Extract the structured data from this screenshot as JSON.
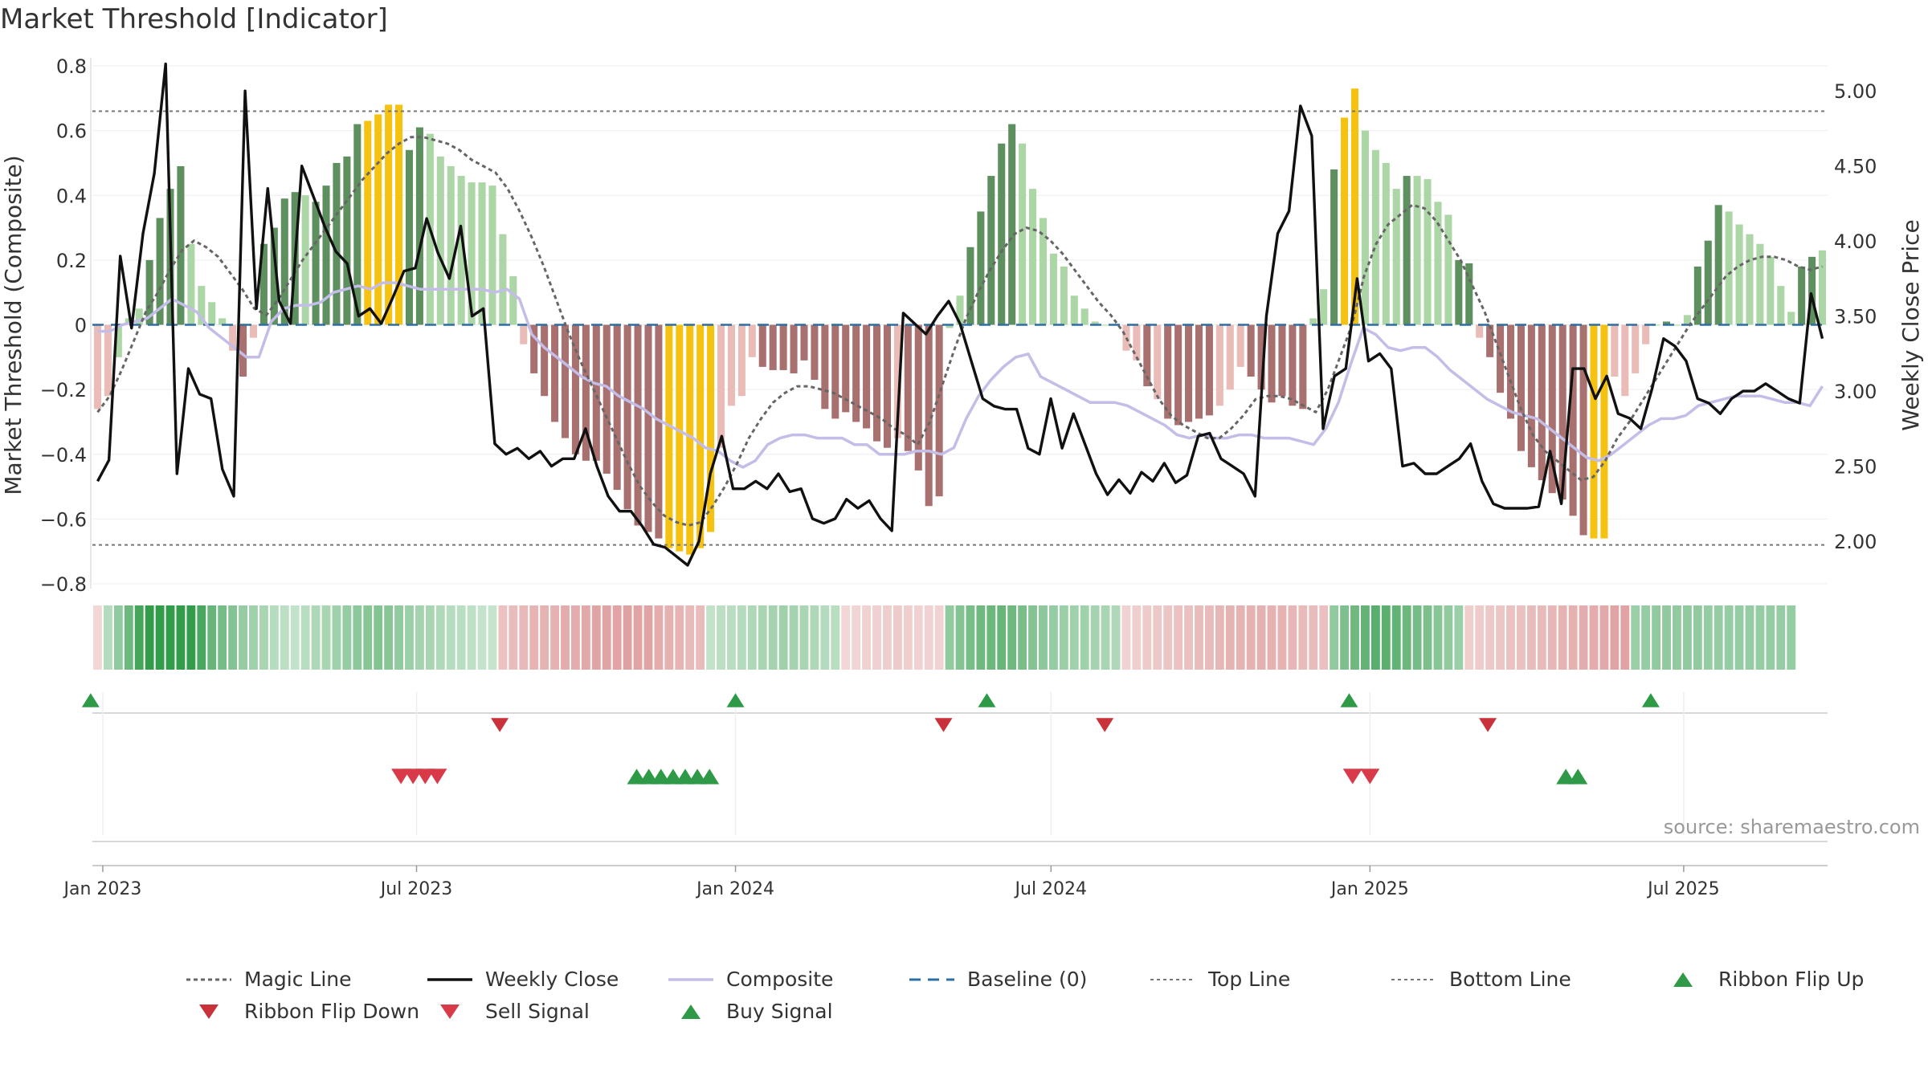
{
  "title": "Market Threshold [Indicator]",
  "source_label": "source: sharemaestro.com",
  "colors": {
    "pos_dark": "#5e8f5e",
    "pos_light": "#acd6a5",
    "neg_dark": "#a8716f",
    "neg_light": "#e9bcb8",
    "extreme": "#f5c211",
    "close": "#111111",
    "composite": "#c3bde8",
    "magic": "#666666",
    "baseline": "#2e6ea3",
    "threshold": "#777777",
    "buy": "#2e9a47",
    "sell": "#d93a49",
    "flip_up": "#2e9a47",
    "flip_down": "#c9323a"
  },
  "chart_data": {
    "type": "bar+line",
    "x_start": "2022-12-26",
    "bar_interval_days": 7,
    "y_left": {
      "label": "Market Threshold (Composite)",
      "lim": [
        -0.8,
        0.8
      ],
      "ticks": [
        0.8,
        0.6,
        0.4,
        0.2,
        0,
        -0.2,
        -0.4,
        -0.6,
        -0.8
      ],
      "tick_labels": [
        "0.8",
        "0.6",
        "0.4",
        "0.2",
        "0",
        "−0.2",
        "−0.4",
        "−0.6",
        "−0.8"
      ]
    },
    "y_right": {
      "label": "Weekly Close Price",
      "lim": [
        1.717,
        5.167
      ],
      "ticks": [
        5.0,
        4.5,
        4.0,
        3.5,
        3.0,
        2.5,
        2.0
      ],
      "tick_labels": [
        "5.00",
        "4.50",
        "4.00",
        "3.50",
        "3.00",
        "2.50",
        "2.00"
      ]
    },
    "x_ticks": [
      {
        "date": "2023-01-01",
        "label": "Jan 2023"
      },
      {
        "date": "2023-07-01",
        "label": "Jul 2023"
      },
      {
        "date": "2024-01-01",
        "label": "Jan 2024"
      },
      {
        "date": "2024-07-01",
        "label": "Jul 2024"
      },
      {
        "date": "2025-01-01",
        "label": "Jan 2025"
      },
      {
        "date": "2025-07-01",
        "label": "Jul 2025"
      }
    ],
    "top_line": 0.66,
    "bottom_line": -0.68,
    "baseline": 0,
    "composite_bars": [
      -0.26,
      -0.22,
      -0.1,
      0.02,
      0.05,
      0.2,
      0.33,
      0.42,
      0.49,
      0.25,
      0.12,
      0.07,
      0.02,
      -0.08,
      -0.16,
      -0.04,
      0.25,
      0.3,
      0.39,
      0.41,
      0.4,
      0.38,
      0.43,
      0.5,
      0.52,
      0.62,
      0.63,
      0.65,
      0.68,
      0.68,
      0.54,
      0.61,
      0.59,
      0.52,
      0.49,
      0.46,
      0.44,
      0.44,
      0.43,
      0.28,
      0.15,
      -0.06,
      -0.15,
      -0.22,
      -0.3,
      -0.35,
      -0.4,
      -0.42,
      -0.42,
      -0.46,
      -0.51,
      -0.57,
      -0.62,
      -0.64,
      -0.66,
      -0.69,
      -0.7,
      -0.71,
      -0.69,
      -0.64,
      -0.38,
      -0.25,
      -0.22,
      -0.1,
      -0.13,
      -0.14,
      -0.14,
      -0.15,
      -0.11,
      -0.17,
      -0.26,
      -0.29,
      -0.27,
      -0.3,
      -0.32,
      -0.36,
      -0.38,
      -0.35,
      -0.39,
      -0.45,
      -0.56,
      -0.53,
      -0.01,
      0.09,
      0.24,
      0.35,
      0.46,
      0.56,
      0.62,
      0.56,
      0.42,
      0.33,
      0.22,
      0.18,
      0.09,
      0.05,
      0.01,
      0,
      0,
      -0.08,
      -0.11,
      -0.19,
      -0.23,
      -0.29,
      -0.31,
      -0.3,
      -0.29,
      -0.28,
      -0.25,
      -0.2,
      -0.13,
      -0.16,
      -0.2,
      -0.24,
      -0.22,
      -0.25,
      -0.26,
      0.02,
      0.11,
      0.48,
      0.64,
      0.73,
      0.6,
      0.54,
      0.5,
      0.42,
      0.46,
      0.46,
      0.45,
      0.38,
      0.34,
      0.2,
      0.19,
      -0.04,
      -0.1,
      -0.21,
      -0.29,
      -0.39,
      -0.44,
      -0.48,
      -0.52,
      -0.54,
      -0.59,
      -0.65,
      -0.66,
      -0.66,
      -0.16,
      -0.22,
      -0.15,
      -0.06,
      0,
      0.01,
      0,
      0.03,
      0.18,
      0.26,
      0.37,
      0.35,
      0.31,
      0.28,
      0.25,
      0.21,
      0.12,
      0.04,
      0.18,
      0.21,
      0.23
    ],
    "bar_styles": [
      "nl",
      "nl",
      "pl",
      "pl",
      "pl",
      "pd",
      "pd",
      "pd",
      "pd",
      "pl",
      "pl",
      "pl",
      "pl",
      "nl",
      "nd",
      "nl",
      "pd",
      "pd",
      "pd",
      "pd",
      "pl",
      "pd",
      "pd",
      "pd",
      "pd",
      "pd",
      "ex",
      "ex",
      "ex",
      "ex",
      "pd",
      "pd",
      "pl",
      "pl",
      "pl",
      "pl",
      "pl",
      "pl",
      "pl",
      "pl",
      "pl",
      "nl",
      "nd",
      "nd",
      "nd",
      "nd",
      "nd",
      "nd",
      "nd",
      "nd",
      "nd",
      "nd",
      "nd",
      "nd",
      "nd",
      "ex",
      "ex",
      "ex",
      "ex",
      "ex",
      "nl",
      "nl",
      "nl",
      "nl",
      "nd",
      "nd",
      "nd",
      "nd",
      "nd",
      "nd",
      "nd",
      "nd",
      "nd",
      "nd",
      "nd",
      "nd",
      "nd",
      "nl",
      "nd",
      "nd",
      "nd",
      "nd",
      "pl",
      "pl",
      "pd",
      "pd",
      "pd",
      "pd",
      "pd",
      "pl",
      "pl",
      "pl",
      "pl",
      "pl",
      "pl",
      "pl",
      "pl",
      "pl",
      "pl",
      "nl",
      "nl",
      "nd",
      "nl",
      "nd",
      "nd",
      "nd",
      "nd",
      "nd",
      "nl",
      "nl",
      "nl",
      "nd",
      "nd",
      "nd",
      "nd",
      "nd",
      "nd",
      "pl",
      "pl",
      "pd",
      "ex",
      "ex",
      "pl",
      "pl",
      "pl",
      "pl",
      "pd",
      "pl",
      "pl",
      "pl",
      "pl",
      "pd",
      "pd",
      "nl",
      "nd",
      "nd",
      "nd",
      "nd",
      "nd",
      "nd",
      "nd",
      "nd",
      "nd",
      "nd",
      "ex",
      "ex",
      "nl",
      "nl",
      "nl",
      "nl",
      "pl",
      "pd",
      "pl",
      "pl",
      "pd",
      "pd",
      "pd",
      "pl",
      "pl",
      "pl",
      "pl",
      "pl",
      "pl",
      "pl",
      "pd",
      "pd"
    ],
    "weekly_close": [
      2.4,
      2.54,
      3.9,
      3.42,
      4.05,
      4.45,
      5.18,
      2.45,
      3.15,
      2.98,
      2.95,
      2.48,
      2.3,
      5.0,
      3.55,
      4.35,
      3.6,
      3.45,
      4.5,
      4.3,
      4.1,
      3.93,
      3.85,
      3.5,
      3.55,
      3.45,
      3.62,
      3.8,
      3.82,
      4.15,
      3.92,
      3.75,
      4.1,
      3.5,
      3.55,
      2.65,
      2.58,
      2.62,
      2.55,
      2.6,
      2.5,
      2.55,
      2.55,
      2.75,
      2.5,
      2.3,
      2.2,
      2.2,
      2.1,
      1.98,
      1.96,
      1.9,
      1.84,
      2.0,
      2.45,
      2.7,
      2.35,
      2.35,
      2.4,
      2.35,
      2.45,
      2.33,
      2.35,
      2.15,
      2.12,
      2.15,
      2.28,
      2.22,
      2.27,
      2.15,
      2.07,
      3.52,
      3.45,
      3.38,
      3.5,
      3.6,
      3.45,
      3.2,
      2.95,
      2.9,
      2.88,
      2.88,
      2.62,
      2.58,
      2.95,
      2.62,
      2.85,
      2.65,
      2.45,
      2.31,
      2.41,
      2.32,
      2.46,
      2.4,
      2.52,
      2.39,
      2.44,
      2.7,
      2.72,
      2.55,
      2.5,
      2.45,
      2.3,
      3.5,
      4.05,
      4.2,
      4.9,
      4.7,
      2.75,
      3.1,
      3.15,
      3.75,
      3.2,
      3.25,
      3.15,
      2.5,
      2.52,
      2.45,
      2.45,
      2.5,
      2.55,
      2.65,
      2.4,
      2.25,
      2.22,
      2.22,
      2.22,
      2.23,
      2.6,
      2.25,
      3.15,
      3.15,
      2.95,
      3.1,
      2.85,
      2.82,
      2.75,
      3.02,
      3.35,
      3.3,
      3.2,
      2.95,
      2.92,
      2.85,
      2.95,
      3.0,
      3.0,
      3.05,
      3.0,
      2.95,
      2.92,
      3.65,
      3.35
    ],
    "composite_line": [
      -0.02,
      -0.02,
      0.0,
      0.01,
      0.02,
      0.05,
      0.08,
      0.06,
      0.04,
      -0.01,
      -0.04,
      -0.07,
      -0.1,
      -0.1,
      0.01,
      0.05,
      0.06,
      0.06,
      0.07,
      0.1,
      0.11,
      0.12,
      0.11,
      0.13,
      0.13,
      0.12,
      0.11,
      0.11,
      0.11,
      0.11,
      0.11,
      0.11,
      0.1,
      0.11,
      0.08,
      -0.03,
      -0.07,
      -0.1,
      -0.13,
      -0.16,
      -0.18,
      -0.19,
      -0.22,
      -0.24,
      -0.26,
      -0.29,
      -0.31,
      -0.33,
      -0.35,
      -0.38,
      -0.39,
      -0.42,
      -0.44,
      -0.42,
      -0.37,
      -0.35,
      -0.34,
      -0.34,
      -0.35,
      -0.35,
      -0.35,
      -0.37,
      -0.37,
      -0.4,
      -0.4,
      -0.4,
      -0.39,
      -0.39,
      -0.4,
      -0.38,
      -0.29,
      -0.22,
      -0.17,
      -0.13,
      -0.1,
      -0.09,
      -0.16,
      -0.18,
      -0.2,
      -0.22,
      -0.24,
      -0.24,
      -0.24,
      -0.25,
      -0.27,
      -0.29,
      -0.31,
      -0.34,
      -0.35,
      -0.34,
      -0.35,
      -0.35,
      -0.34,
      -0.34,
      -0.35,
      -0.35,
      -0.35,
      -0.36,
      -0.37,
      -0.32,
      -0.24,
      -0.12,
      -0.01,
      -0.03,
      -0.07,
      -0.08,
      -0.07,
      -0.07,
      -0.1,
      -0.14,
      -0.17,
      -0.2,
      -0.23,
      -0.25,
      -0.27,
      -0.28,
      -0.29,
      -0.32,
      -0.35,
      -0.38,
      -0.41,
      -0.42,
      -0.4,
      -0.37,
      -0.34,
      -0.31,
      -0.29,
      -0.29,
      -0.28,
      -0.25,
      -0.24,
      -0.23,
      -0.22,
      -0.22,
      -0.22,
      -0.23,
      -0.24,
      -0.24,
      -0.25,
      -0.19
    ],
    "magic_line": [
      -0.27,
      -0.22,
      -0.14,
      -0.05,
      0.04,
      0.1,
      0.17,
      0.23,
      0.26,
      0.24,
      0.21,
      0.16,
      0.11,
      0.05,
      0.03,
      0.08,
      0.14,
      0.2,
      0.25,
      0.3,
      0.35,
      0.4,
      0.45,
      0.49,
      0.53,
      0.56,
      0.58,
      0.58,
      0.57,
      0.56,
      0.54,
      0.51,
      0.49,
      0.47,
      0.42,
      0.35,
      0.27,
      0.18,
      0.08,
      -0.02,
      -0.11,
      -0.19,
      -0.27,
      -0.35,
      -0.43,
      -0.5,
      -0.55,
      -0.59,
      -0.61,
      -0.62,
      -0.61,
      -0.56,
      -0.5,
      -0.43,
      -0.35,
      -0.29,
      -0.24,
      -0.21,
      -0.19,
      -0.19,
      -0.2,
      -0.21,
      -0.23,
      -0.25,
      -0.27,
      -0.29,
      -0.32,
      -0.34,
      -0.37,
      -0.3,
      -0.19,
      -0.08,
      0.02,
      0.1,
      0.17,
      0.23,
      0.28,
      0.3,
      0.29,
      0.26,
      0.22,
      0.17,
      0.12,
      0.07,
      0.03,
      -0.02,
      -0.09,
      -0.16,
      -0.23,
      -0.28,
      -0.31,
      -0.33,
      -0.35,
      -0.35,
      -0.32,
      -0.28,
      -0.23,
      -0.22,
      -0.22,
      -0.23,
      -0.25,
      -0.27,
      -0.2,
      -0.1,
      0.0,
      0.15,
      0.25,
      0.31,
      0.34,
      0.37,
      0.36,
      0.32,
      0.26,
      0.2,
      0.12,
      0.04,
      -0.06,
      -0.16,
      -0.26,
      -0.34,
      -0.39,
      -0.42,
      -0.45,
      -0.48,
      -0.47,
      -0.42,
      -0.35,
      -0.3,
      -0.24,
      -0.18,
      -0.12,
      -0.06,
      0.0,
      0.05,
      0.1,
      0.15,
      0.18,
      0.2,
      0.21,
      0.21,
      0.2,
      0.18,
      0.17,
      0.18
    ],
    "ribbon": [
      -0.12,
      0.16,
      0.3,
      0.45,
      0.62,
      0.7,
      0.7,
      0.7,
      0.7,
      0.7,
      0.6,
      0.48,
      0.42,
      0.36,
      0.28,
      0.24,
      0.2,
      0.15,
      0.12,
      0.1,
      0.14,
      0.18,
      0.2,
      0.24,
      0.28,
      0.32,
      0.34,
      0.36,
      0.34,
      0.3,
      0.26,
      0.22,
      0.2,
      0.17,
      0.15,
      0.13,
      0.11,
      0.09,
      0.08,
      -0.26,
      -0.3,
      -0.33,
      -0.35,
      -0.37,
      -0.38,
      -0.4,
      -0.42,
      -0.44,
      -0.46,
      -0.47,
      -0.48,
      -0.49,
      -0.48,
      -0.46,
      -0.42,
      -0.38,
      -0.35,
      -0.32,
      -0.3,
      0.1,
      0.12,
      0.14,
      0.16,
      0.18,
      0.2,
      0.22,
      0.24,
      0.22,
      0.2,
      0.18,
      0.16,
      0.14,
      -0.12,
      -0.14,
      -0.16,
      -0.17,
      -0.18,
      -0.2,
      -0.18,
      -0.16,
      -0.16,
      -0.16,
      0.3,
      0.36,
      0.4,
      0.44,
      0.46,
      0.48,
      0.44,
      0.4,
      0.36,
      0.32,
      0.28,
      0.26,
      0.24,
      0.24,
      0.22,
      0.2,
      0.18,
      -0.16,
      -0.18,
      -0.2,
      -0.22,
      -0.24,
      -0.26,
      -0.28,
      -0.3,
      -0.32,
      -0.34,
      -0.36,
      -0.37,
      -0.38,
      -0.39,
      -0.38,
      -0.36,
      -0.34,
      -0.32,
      -0.3,
      -0.28,
      0.3,
      0.38,
      0.44,
      0.5,
      0.54,
      0.52,
      0.5,
      0.46,
      0.42,
      0.38,
      0.34,
      0.3,
      0.26,
      -0.18,
      -0.2,
      -0.22,
      -0.24,
      -0.26,
      -0.28,
      -0.3,
      -0.32,
      -0.34,
      -0.36,
      -0.38,
      -0.4,
      -0.42,
      -0.44,
      -0.46,
      -0.48,
      0.26,
      0.28,
      0.3,
      0.3,
      0.3,
      0.3,
      0.3,
      0.28,
      0.28,
      0.28,
      0.28,
      0.28,
      0.28,
      0.28,
      0.28,
      0.28
    ],
    "ribbon_flip_up": [
      "2022-12-25",
      "2024-01-01",
      "2024-05-25",
      "2024-12-20",
      "2025-06-12"
    ],
    "ribbon_flip_down": [
      "2023-08-18",
      "2024-04-30",
      "2024-08-01",
      "2025-03-10"
    ],
    "sell_signal": [
      "2023-06-22",
      "2023-06-29",
      "2023-07-06",
      "2023-07-13",
      "2024-12-22",
      "2025-01-01"
    ],
    "buy_signal": [
      "2023-11-05",
      "2023-11-12",
      "2023-11-19",
      "2023-11-26",
      "2023-12-03",
      "2023-12-10",
      "2023-12-17",
      "2025-04-24",
      "2025-05-01"
    ]
  },
  "legend": [
    {
      "key": "magic",
      "label": "Magic Line"
    },
    {
      "key": "close",
      "label": "Weekly Close"
    },
    {
      "key": "composite",
      "label": "Composite"
    },
    {
      "key": "baseline",
      "label": "Baseline (0)"
    },
    {
      "key": "top",
      "label": "Top Line"
    },
    {
      "key": "bottom",
      "label": "Bottom Line"
    },
    {
      "key": "flip_up",
      "label": "Ribbon Flip Up"
    },
    {
      "key": "flip_down",
      "label": "Ribbon Flip Down"
    },
    {
      "key": "sell",
      "label": "Sell Signal"
    },
    {
      "key": "buy",
      "label": "Buy Signal"
    }
  ]
}
